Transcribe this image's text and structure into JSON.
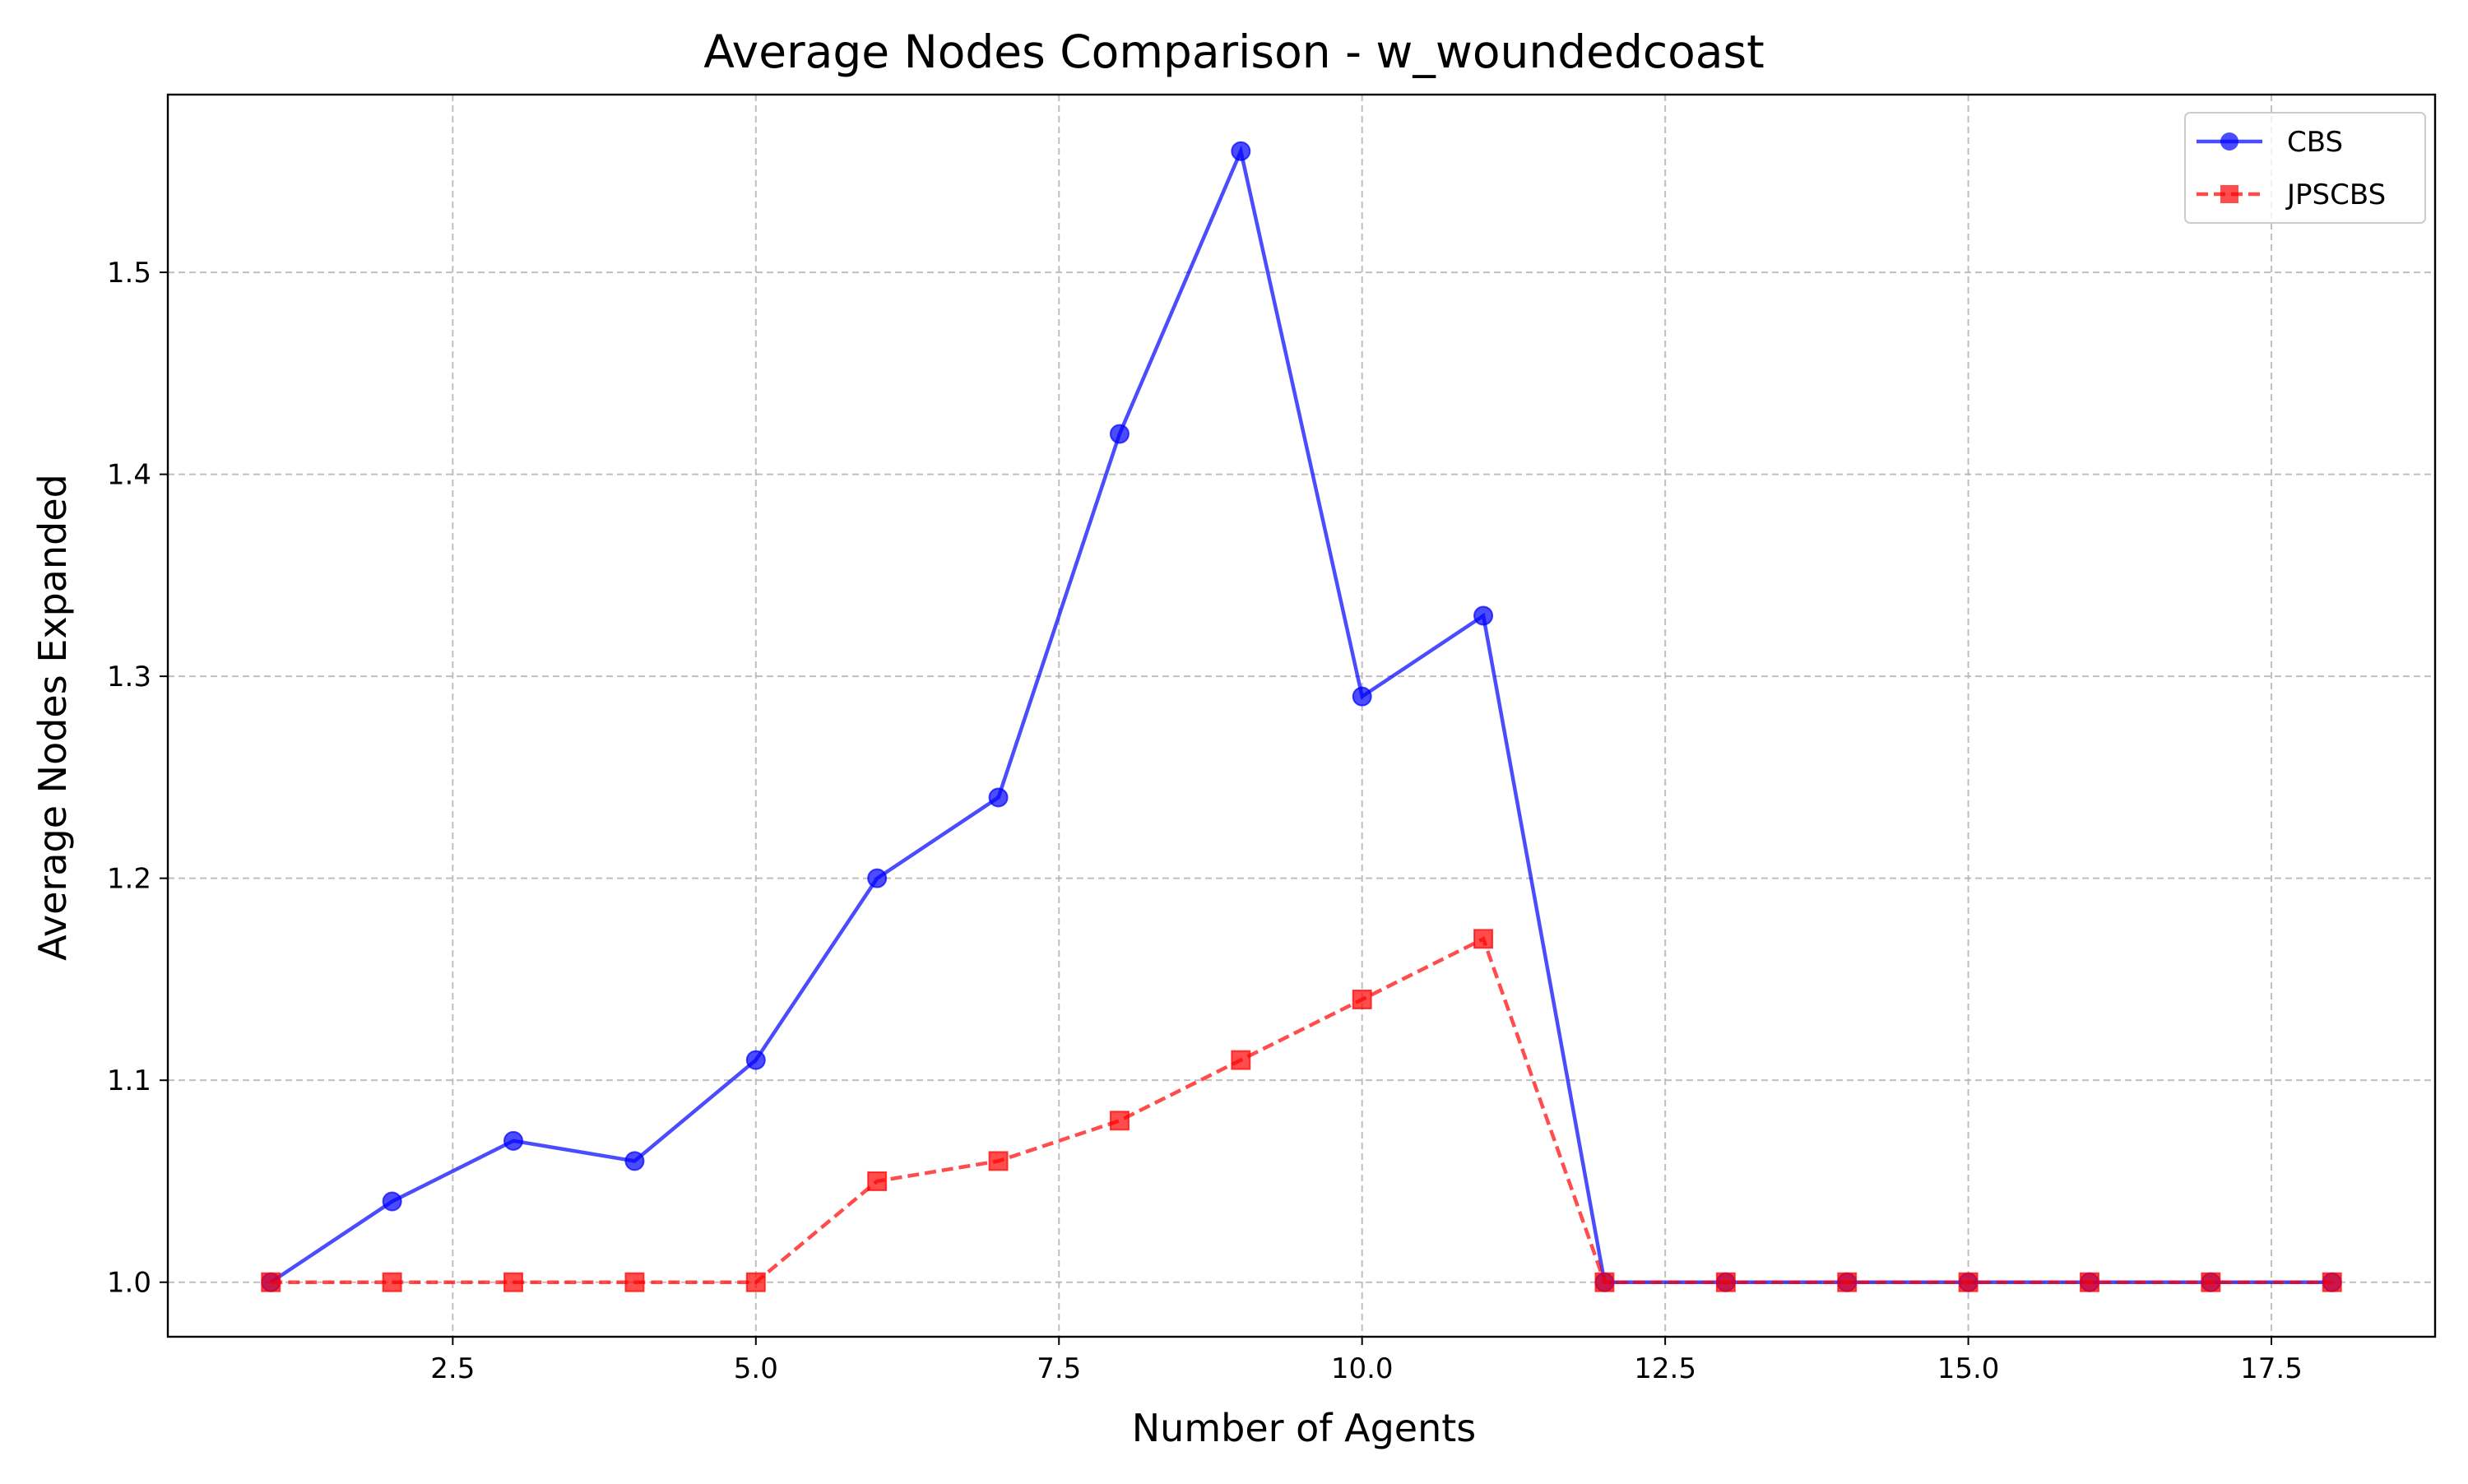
{
  "chart_data": {
    "type": "line",
    "title": "Average Nodes Comparison - w_woundedcoast",
    "xlabel": "Number of Agents",
    "ylabel": "Average Nodes Expanded",
    "xlim": [
      0.15,
      18.85
    ],
    "ylim": [
      0.973,
      1.588
    ],
    "xticks": [
      2.5,
      5.0,
      7.5,
      10.0,
      12.5,
      15.0,
      17.5
    ],
    "xtick_labels": [
      "2.5",
      "5.0",
      "7.5",
      "10.0",
      "12.5",
      "15.0",
      "17.5"
    ],
    "yticks": [
      1.0,
      1.1,
      1.2,
      1.3,
      1.4,
      1.5
    ],
    "ytick_labels": [
      "1.0",
      "1.1",
      "1.2",
      "1.3",
      "1.4",
      "1.5"
    ],
    "grid": true,
    "legend_position": "top-right",
    "x": [
      1,
      2,
      3,
      4,
      5,
      6,
      7,
      8,
      9,
      10,
      11,
      12,
      13,
      14,
      15,
      16,
      17,
      18
    ],
    "series": [
      {
        "name": "CBS",
        "color": "#0000ff",
        "marker": "circle",
        "linestyle": "solid",
        "values": [
          1.0,
          1.04,
          1.07,
          1.06,
          1.11,
          1.2,
          1.24,
          1.42,
          1.56,
          1.29,
          1.33,
          1.0,
          1.0,
          1.0,
          1.0,
          1.0,
          1.0,
          1.0
        ]
      },
      {
        "name": "JPSCBS",
        "color": "#ff0000",
        "marker": "square",
        "linestyle": "dashed",
        "values": [
          1.0,
          1.0,
          1.0,
          1.0,
          1.0,
          1.05,
          1.06,
          1.08,
          1.11,
          1.14,
          1.17,
          1.0,
          1.0,
          1.0,
          1.0,
          1.0,
          1.0,
          1.0
        ]
      }
    ]
  }
}
